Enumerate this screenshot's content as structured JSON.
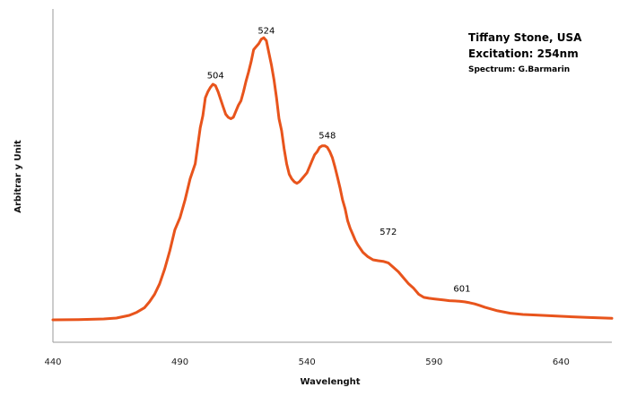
{
  "chart_data": {
    "type": "line",
    "title": "",
    "xlabel": "Wavelenght",
    "ylabel": "Arbitrar y Unit",
    "xlim": [
      440,
      660
    ],
    "ylim": [
      0,
      100
    ],
    "x_ticks": [
      440,
      490,
      540,
      590,
      640
    ],
    "grid": false,
    "annotations": {
      "line1": "Tiffany Stone, USA",
      "line2": "Excitation: 254nm",
      "line3": "Spectrum: G.Barmarin"
    },
    "peak_labels": [
      {
        "text": "504",
        "x": 504,
        "y": 78
      },
      {
        "text": "524",
        "x": 524,
        "y": 93
      },
      {
        "text": "548",
        "x": 548,
        "y": 58
      },
      {
        "text": "572",
        "x": 572,
        "y": 26
      },
      {
        "text": "601",
        "x": 601,
        "y": 7
      }
    ],
    "series": [
      {
        "color": "#E8541C",
        "x": [
          440,
          450,
          460,
          465,
          470,
          473,
          476,
          478,
          480,
          482,
          484,
          486,
          488,
          490,
          492,
          494,
          496,
          498,
          499,
          500,
          501,
          502,
          503,
          504,
          505,
          506,
          507,
          508,
          509,
          510,
          511,
          512,
          513,
          514,
          515,
          516,
          517,
          518,
          519,
          520,
          521,
          522,
          523,
          524,
          525,
          526,
          527,
          528,
          529,
          530,
          531,
          532,
          533,
          534,
          535,
          536,
          537,
          538,
          539,
          540,
          541,
          542,
          543,
          544,
          545,
          546,
          547,
          548,
          549,
          550,
          551,
          552,
          553,
          554,
          555,
          556,
          557,
          558,
          559,
          560,
          562,
          564,
          566,
          568,
          570,
          572,
          574,
          576,
          578,
          580,
          582,
          584,
          586,
          588,
          590,
          592,
          594,
          596,
          598,
          600,
          602,
          604,
          606,
          608,
          610,
          615,
          620,
          625,
          630,
          640,
          650,
          660
        ],
        "y": [
          0,
          0.1,
          0.3,
          0.6,
          1.5,
          2.5,
          4.0,
          6.0,
          8.5,
          12,
          17,
          23,
          30,
          34,
          40,
          47,
          52,
          64,
          68,
          74,
          76,
          77.5,
          78.5,
          78,
          76,
          73.5,
          71,
          68.5,
          67.5,
          67,
          67.5,
          69.5,
          71.5,
          73,
          76,
          79.5,
          82.5,
          86,
          90,
          91,
          92,
          93.5,
          94,
          93,
          89,
          85,
          80,
          74,
          67,
          63,
          57,
          52,
          48.5,
          47,
          46,
          45.5,
          46,
          47,
          48,
          49,
          51,
          53,
          55,
          56,
          57.5,
          58,
          58,
          57.5,
          56,
          54,
          51,
          47.5,
          44,
          40,
          37,
          33,
          30.5,
          28.5,
          26.5,
          25,
          22.5,
          21,
          20,
          19.7,
          19.5,
          19,
          17.5,
          16,
          14,
          12,
          10.5,
          8.5,
          7.5,
          7.2,
          7,
          6.8,
          6.6,
          6.4,
          6.3,
          6.2,
          6.0,
          5.7,
          5.3,
          4.8,
          4.2,
          3.0,
          2.2,
          1.8,
          1.6,
          1.2,
          0.8,
          0.5
        ]
      }
    ]
  }
}
